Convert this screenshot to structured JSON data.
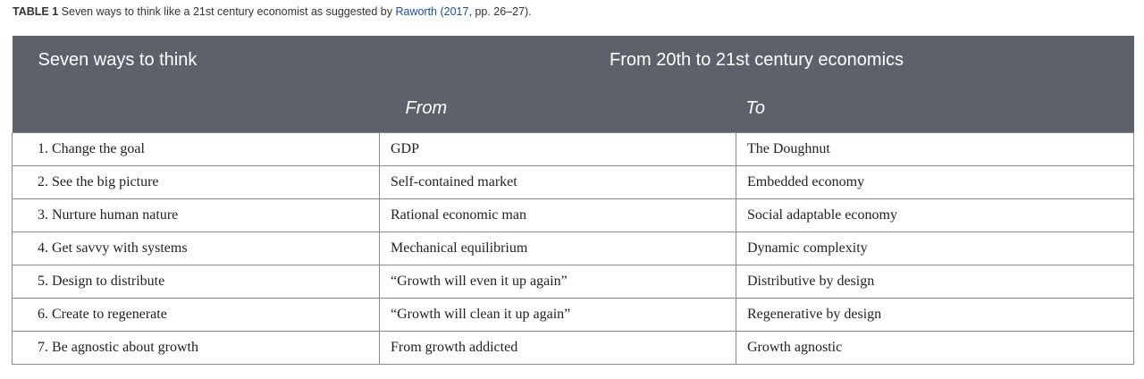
{
  "caption": {
    "label": "TABLE 1",
    "text_before": "Seven ways to think like a 21st century economist as suggested by ",
    "citation": "Raworth (2017",
    "text_after": ", pp. 26–27)."
  },
  "table": {
    "header": {
      "col1": "Seven ways to think",
      "span": "From 20th to 21st century economics",
      "from": "From",
      "to": "To"
    },
    "rows": [
      {
        "way": "1. Change the goal",
        "from": "GDP",
        "to": "The Doughnut"
      },
      {
        "way": "2. See the big picture",
        "from": "Self-contained market",
        "to": "Embedded economy"
      },
      {
        "way": "3. Nurture human nature",
        "from": "Rational economic man",
        "to": "Social adaptable economy"
      },
      {
        "way": "4. Get savvy with systems",
        "from": "Mechanical equilibrium",
        "to": "Dynamic complexity"
      },
      {
        "way": "5. Design to distribute",
        "from": "“Growth will even it up again”",
        "to": "Distributive by design"
      },
      {
        "way": "6. Create to regenerate",
        "from": "“Growth will clean it up again”",
        "to": "Regenerative by design"
      },
      {
        "way": "7. Be agnostic about growth",
        "from": "From growth addicted",
        "to": "Growth agnostic"
      }
    ]
  }
}
